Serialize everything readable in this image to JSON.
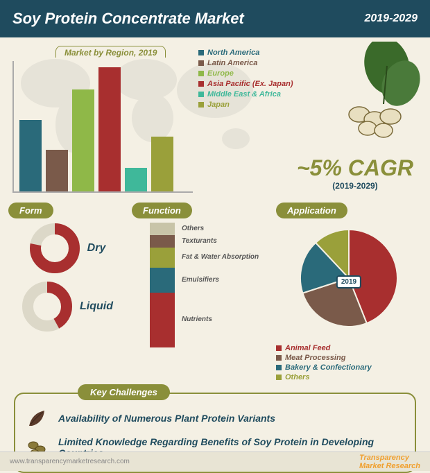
{
  "header": {
    "title": "Soy Protein Concentrate Market",
    "year_range": "2019-2029"
  },
  "region_chart": {
    "type": "bar",
    "title": "Market by Region, 2019",
    "categories": [
      "North America",
      "Latin America",
      "Europe",
      "Asia Pacific (Ex. Japan)",
      "Middle East & Africa",
      "Japan"
    ],
    "values": [
      55,
      32,
      78,
      95,
      18,
      42
    ],
    "colors": [
      "#2a6a7a",
      "#7a5a4a",
      "#8fb848",
      "#a82f2f",
      "#3fb89a",
      "#9aa03a"
    ],
    "ylim": [
      0,
      100
    ],
    "background": "#f4f0e4",
    "title_color": "#8a8f3a",
    "title_fontsize": 12
  },
  "cagr": {
    "value": "~5% CAGR",
    "sub": "(2019-2029)",
    "value_color": "#8a8f3a",
    "sub_color": "#1f4b5e",
    "value_fontsize": 32
  },
  "form_panel": {
    "title": "Form",
    "items": [
      {
        "label": "Dry",
        "pct": 78,
        "color": "#a82f2f",
        "track": "#dcd8c8"
      },
      {
        "label": "Liquid",
        "pct": 42,
        "color": "#a82f2f",
        "track": "#dcd8c8"
      }
    ]
  },
  "function_panel": {
    "title": "Function",
    "type": "stacked_bar",
    "segments": [
      {
        "label": "Nutrients",
        "pct": 44,
        "color": "#a82f2f"
      },
      {
        "label": "Emulsifiers",
        "pct": 20,
        "color": "#2a6a7a"
      },
      {
        "label": "Fat & Water Absorption",
        "pct": 16,
        "color": "#9aa03a"
      },
      {
        "label": "Texturants",
        "pct": 10,
        "color": "#7a5a4a"
      },
      {
        "label": "Others",
        "pct": 10,
        "color": "#c8c4a8"
      }
    ]
  },
  "application_panel": {
    "title": "Application",
    "type": "pie",
    "year_label": "2019",
    "segments": [
      {
        "label": "Animal Feed",
        "pct": 44,
        "color": "#a82f2f"
      },
      {
        "label": "Meat Processing",
        "pct": 26,
        "color": "#7a5a4a"
      },
      {
        "label": "Bakery & Confectionary",
        "pct": 18,
        "color": "#2a6a7a"
      },
      {
        "label": "Others",
        "pct": 12,
        "color": "#9aa03a"
      }
    ]
  },
  "challenges": {
    "title": "Key Challenges",
    "items": [
      "Availability of Numerous Plant Protein Variants",
      "Limited Knowledge Regarding Benefits of Soy Protein in Developing Countries"
    ]
  },
  "footer": {
    "url": "www.transparencymarketresearch.com",
    "brand_a": "Transparency",
    "brand_b": "Market Research"
  }
}
